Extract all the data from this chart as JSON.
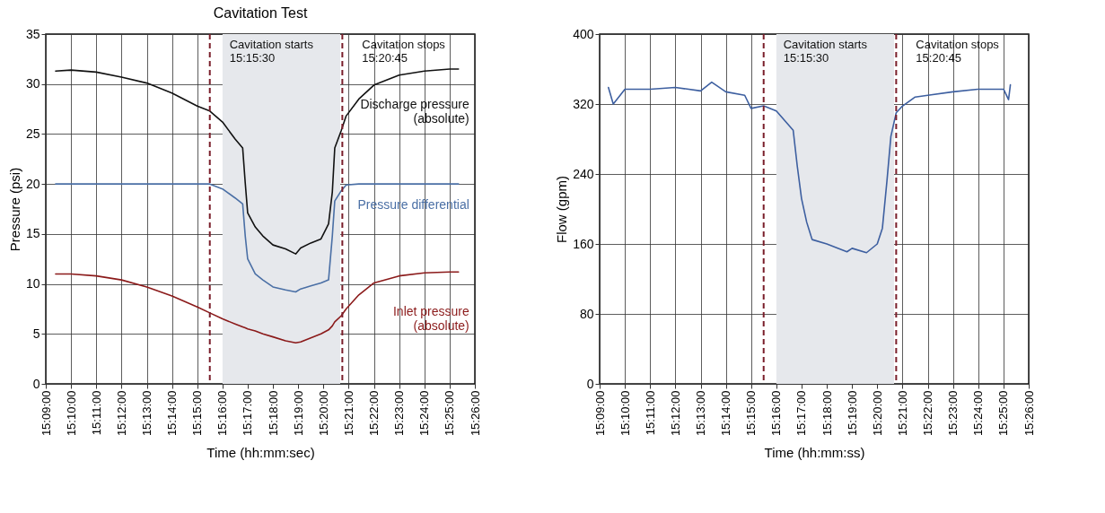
{
  "chart_data": [
    {
      "type": "line",
      "title": "Cavitation Test",
      "xlabel": "Time (hh:mm:sec)",
      "ylabel": "Pressure (psi)",
      "x": [
        15.1565,
        15.1667,
        15.1833,
        15.2,
        15.2167,
        15.2333,
        15.25,
        15.2583,
        15.2667,
        15.275,
        15.28,
        15.2817,
        15.2833,
        15.2883,
        15.2933,
        15.3,
        15.3083,
        15.315,
        15.3183,
        15.325,
        15.3317,
        15.3367,
        15.3392,
        15.3408,
        15.345,
        15.3483,
        15.3567,
        15.3667,
        15.3833,
        15.4,
        15.4167,
        15.4225
      ],
      "series": [
        {
          "name": "Discharge pressure\n(absolute)",
          "color": "#111111",
          "values": [
            31.3,
            31.4,
            31.2,
            30.7,
            30.1,
            29.1,
            27.8,
            27.3,
            26.2,
            24.5,
            23.6,
            20.1,
            17.1,
            15.7,
            14.8,
            13.9,
            13.5,
            13.0,
            13.6,
            14.1,
            14.5,
            16.0,
            19.2,
            23.6,
            25.3,
            26.8,
            28.5,
            29.9,
            30.9,
            31.3,
            31.5,
            31.5
          ]
        },
        {
          "name": "Pressure differential",
          "color": "#4a6fa5",
          "values": [
            20,
            20,
            20,
            20,
            20,
            20,
            20,
            20,
            19.5,
            18.6,
            18.0,
            14.8,
            12.5,
            11.0,
            10.4,
            9.7,
            9.4,
            9.2,
            9.5,
            9.8,
            10.1,
            10.4,
            14.8,
            18.3,
            19.3,
            19.9,
            20,
            20,
            20,
            20,
            20,
            20
          ]
        },
        {
          "name": "Inlet pressure\n(absolute)",
          "color": "#8b1a1a",
          "values": [
            11.0,
            11.0,
            10.8,
            10.4,
            9.7,
            8.8,
            7.7,
            7.1,
            6.5,
            6.0,
            5.7,
            5.6,
            5.5,
            5.3,
            5.0,
            4.7,
            4.3,
            4.1,
            4.2,
            4.6,
            5.0,
            5.4,
            5.8,
            6.2,
            6.8,
            7.5,
            8.9,
            10.1,
            10.8,
            11.1,
            11.2,
            11.2
          ]
        }
      ],
      "xlim": [
        15.15,
        15.4333
      ],
      "xticks": [
        {
          "value": 15.15,
          "label": "15:09:00"
        },
        {
          "value": 15.1667,
          "label": "15:10:00"
        },
        {
          "value": 15.1833,
          "label": "15:11:00"
        },
        {
          "value": 15.2,
          "label": "15:12:00"
        },
        {
          "value": 15.2167,
          "label": "15:13:00"
        },
        {
          "value": 15.2333,
          "label": "15:14:00"
        },
        {
          "value": 15.25,
          "label": "15:15:00"
        },
        {
          "value": 15.2667,
          "label": "15:16:00"
        },
        {
          "value": 15.2833,
          "label": "15:17:00"
        },
        {
          "value": 15.3,
          "label": "15:18:00"
        },
        {
          "value": 15.3167,
          "label": "15:19:00"
        },
        {
          "value": 15.3333,
          "label": "15:20:00"
        },
        {
          "value": 15.35,
          "label": "15:21:00"
        },
        {
          "value": 15.3667,
          "label": "15:22:00"
        },
        {
          "value": 15.3833,
          "label": "15:23:00"
        },
        {
          "value": 15.4,
          "label": "15:24:00"
        },
        {
          "value": 15.4167,
          "label": "15:25:00"
        },
        {
          "value": 15.4333,
          "label": "15:26:00"
        }
      ],
      "ylim": [
        0,
        35
      ],
      "yticks": [
        0,
        5,
        10,
        15,
        20,
        25,
        30,
        35
      ],
      "grid": true,
      "bands": [
        {
          "axis": "x",
          "from": 15.2667,
          "to": 15.3444,
          "color": "#e6e8ec"
        }
      ],
      "ref_lines": [
        {
          "axis": "x",
          "value": 15.2583,
          "color": "#7a1f2b",
          "line_style": "dashed"
        },
        {
          "axis": "x",
          "value": 15.3458,
          "color": "#7a1f2b",
          "line_style": "dashed"
        }
      ],
      "annotations": [
        "Cavitation starts\n15:15:30",
        "Cavitation stops\n15:20:45"
      ]
    },
    {
      "type": "line",
      "xlabel": "Time (hh:mm:ss)",
      "ylabel": "Flow (gpm)",
      "x": [
        15.1558,
        15.159,
        15.1667,
        15.1833,
        15.2,
        15.2167,
        15.224,
        15.2333,
        15.2458,
        15.25,
        15.2583,
        15.2667,
        15.2778,
        15.2805,
        15.2833,
        15.2867,
        15.2903,
        15.3,
        15.3133,
        15.3167,
        15.3262,
        15.3333,
        15.3367,
        15.3397,
        15.3423,
        15.3458,
        15.3495,
        15.3583,
        15.3667,
        15.3833,
        15.3997,
        15.4167,
        15.42,
        15.4212
      ],
      "series": [
        {
          "color": "#3d5fa0",
          "values": [
            339,
            320,
            337,
            337,
            339,
            335,
            345,
            334,
            330,
            315,
            318,
            312,
            290,
            249,
            212,
            185,
            165,
            160,
            151,
            155,
            150,
            160,
            178,
            232,
            283,
            310,
            317,
            328,
            330,
            334,
            337,
            337,
            325,
            342
          ]
        }
      ],
      "xlim": [
        15.15,
        15.4333
      ],
      "xticks": [
        {
          "value": 15.15,
          "label": "15:09:00"
        },
        {
          "value": 15.1667,
          "label": "15:10:00"
        },
        {
          "value": 15.1833,
          "label": "15:11:00"
        },
        {
          "value": 15.2,
          "label": "15:12:00"
        },
        {
          "value": 15.2167,
          "label": "15:13:00"
        },
        {
          "value": 15.2333,
          "label": "15:14:00"
        },
        {
          "value": 15.25,
          "label": "15:15:00"
        },
        {
          "value": 15.2667,
          "label": "15:16:00"
        },
        {
          "value": 15.2833,
          "label": "15:17:00"
        },
        {
          "value": 15.3,
          "label": "15:18:00"
        },
        {
          "value": 15.3167,
          "label": "15:19:00"
        },
        {
          "value": 15.3333,
          "label": "15:20:00"
        },
        {
          "value": 15.35,
          "label": "15:21:00"
        },
        {
          "value": 15.3667,
          "label": "15:22:00"
        },
        {
          "value": 15.3833,
          "label": "15:23:00"
        },
        {
          "value": 15.4,
          "label": "15:24:00"
        },
        {
          "value": 15.4167,
          "label": "15:25:00"
        },
        {
          "value": 15.4333,
          "label": "15:26:00"
        }
      ],
      "ylim": [
        0,
        400
      ],
      "yticks": [
        0,
        80,
        160,
        240,
        320,
        400
      ],
      "grid": true,
      "bands": [
        {
          "axis": "x",
          "from": 15.2667,
          "to": 15.3444,
          "color": "#e6e8ec"
        }
      ],
      "ref_lines": [
        {
          "axis": "x",
          "value": 15.2583,
          "color": "#7a1f2b",
          "line_style": "dashed"
        },
        {
          "axis": "x",
          "value": 15.3458,
          "color": "#7a1f2b",
          "line_style": "dashed"
        }
      ],
      "annotations": [
        "Cavitation starts\n15:15:30",
        "Cavitation stops\n15:20:45"
      ]
    }
  ]
}
